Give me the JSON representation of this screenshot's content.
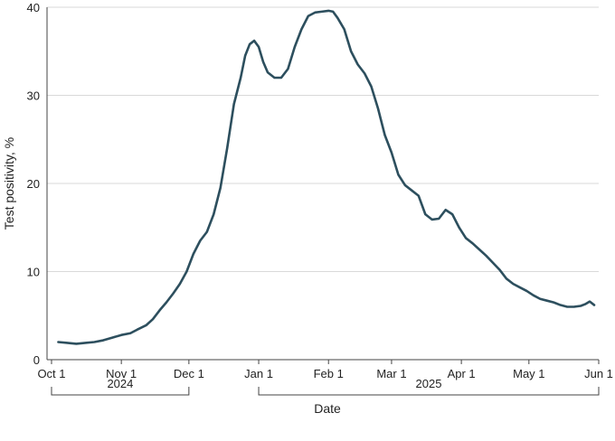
{
  "colors": {
    "series": "#2d4f5e",
    "grid": "#d9d9d9",
    "axis": "#444444",
    "text": "#222222"
  },
  "chart_data": {
    "type": "line",
    "title": "",
    "xlabel": "Date",
    "ylabel": "Test positivity, %",
    "ylim": [
      0,
      40
    ],
    "xlim": [
      "2024-09-29",
      "2025-06-01"
    ],
    "grid": {
      "horizontal": true,
      "vertical": false
    },
    "y_ticks": [
      0,
      10,
      20,
      30,
      40
    ],
    "x_ticks": [
      {
        "date": "2024-10-01",
        "label": "Oct 1"
      },
      {
        "date": "2024-11-01",
        "label": "Nov 1"
      },
      {
        "date": "2024-12-01",
        "label": "Dec 1"
      },
      {
        "date": "2025-01-01",
        "label": "Jan 1"
      },
      {
        "date": "2025-02-01",
        "label": "Feb 1"
      },
      {
        "date": "2025-03-01",
        "label": "Mar 1"
      },
      {
        "date": "2025-04-01",
        "label": "Apr 1"
      },
      {
        "date": "2025-05-01",
        "label": "May 1"
      },
      {
        "date": "2025-06-01",
        "label": "Jun 1"
      }
    ],
    "year_groups": [
      {
        "label": "2024",
        "start": "2024-10-01",
        "end": "2024-12-01"
      },
      {
        "label": "2025",
        "start": "2025-01-01",
        "end": "2025-06-01"
      }
    ],
    "series": [
      {
        "points": [
          [
            "2024-10-04",
            2.0
          ],
          [
            "2024-10-08",
            1.9
          ],
          [
            "2024-10-12",
            1.8
          ],
          [
            "2024-10-16",
            1.9
          ],
          [
            "2024-10-20",
            2.0
          ],
          [
            "2024-10-24",
            2.2
          ],
          [
            "2024-10-28",
            2.5
          ],
          [
            "2024-11-01",
            2.8
          ],
          [
            "2024-11-05",
            3.0
          ],
          [
            "2024-11-08",
            3.4
          ],
          [
            "2024-11-12",
            3.9
          ],
          [
            "2024-11-15",
            4.6
          ],
          [
            "2024-11-18",
            5.6
          ],
          [
            "2024-11-21",
            6.5
          ],
          [
            "2024-11-24",
            7.5
          ],
          [
            "2024-11-27",
            8.6
          ],
          [
            "2024-11-30",
            10.0
          ],
          [
            "2024-12-03",
            12.0
          ],
          [
            "2024-12-06",
            13.5
          ],
          [
            "2024-12-09",
            14.5
          ],
          [
            "2024-12-12",
            16.5
          ],
          [
            "2024-12-15",
            19.5
          ],
          [
            "2024-12-18",
            24.0
          ],
          [
            "2024-12-21",
            29.0
          ],
          [
            "2024-12-24",
            32.0
          ],
          [
            "2024-12-26",
            34.5
          ],
          [
            "2024-12-28",
            35.8
          ],
          [
            "2024-12-30",
            36.2
          ],
          [
            "2025-01-01",
            35.5
          ],
          [
            "2025-01-03",
            33.8
          ],
          [
            "2025-01-05",
            32.6
          ],
          [
            "2025-01-08",
            32.0
          ],
          [
            "2025-01-11",
            32.0
          ],
          [
            "2025-01-14",
            33.0
          ],
          [
            "2025-01-17",
            35.5
          ],
          [
            "2025-01-20",
            37.5
          ],
          [
            "2025-01-23",
            39.0
          ],
          [
            "2025-01-26",
            39.4
          ],
          [
            "2025-01-29",
            39.5
          ],
          [
            "2025-02-01",
            39.6
          ],
          [
            "2025-02-03",
            39.5
          ],
          [
            "2025-02-05",
            38.8
          ],
          [
            "2025-02-08",
            37.5
          ],
          [
            "2025-02-11",
            35.0
          ],
          [
            "2025-02-14",
            33.5
          ],
          [
            "2025-02-17",
            32.5
          ],
          [
            "2025-02-20",
            31.0
          ],
          [
            "2025-02-23",
            28.5
          ],
          [
            "2025-02-26",
            25.5
          ],
          [
            "2025-03-01",
            23.5
          ],
          [
            "2025-03-04",
            21.0
          ],
          [
            "2025-03-07",
            19.8
          ],
          [
            "2025-03-10",
            19.2
          ],
          [
            "2025-03-13",
            18.6
          ],
          [
            "2025-03-16",
            16.5
          ],
          [
            "2025-03-19",
            15.9
          ],
          [
            "2025-03-22",
            16.0
          ],
          [
            "2025-03-25",
            17.0
          ],
          [
            "2025-03-28",
            16.5
          ],
          [
            "2025-03-31",
            15.0
          ],
          [
            "2025-04-03",
            13.8
          ],
          [
            "2025-04-06",
            13.2
          ],
          [
            "2025-04-09",
            12.5
          ],
          [
            "2025-04-12",
            11.8
          ],
          [
            "2025-04-15",
            11.0
          ],
          [
            "2025-04-18",
            10.2
          ],
          [
            "2025-04-21",
            9.2
          ],
          [
            "2025-04-24",
            8.6
          ],
          [
            "2025-04-27",
            8.2
          ],
          [
            "2025-04-30",
            7.8
          ],
          [
            "2025-05-03",
            7.3
          ],
          [
            "2025-05-06",
            6.9
          ],
          [
            "2025-05-09",
            6.7
          ],
          [
            "2025-05-12",
            6.5
          ],
          [
            "2025-05-15",
            6.2
          ],
          [
            "2025-05-18",
            6.0
          ],
          [
            "2025-05-21",
            6.0
          ],
          [
            "2025-05-24",
            6.1
          ],
          [
            "2025-05-26",
            6.3
          ],
          [
            "2025-05-28",
            6.6
          ],
          [
            "2025-05-30",
            6.2
          ]
        ]
      }
    ]
  }
}
